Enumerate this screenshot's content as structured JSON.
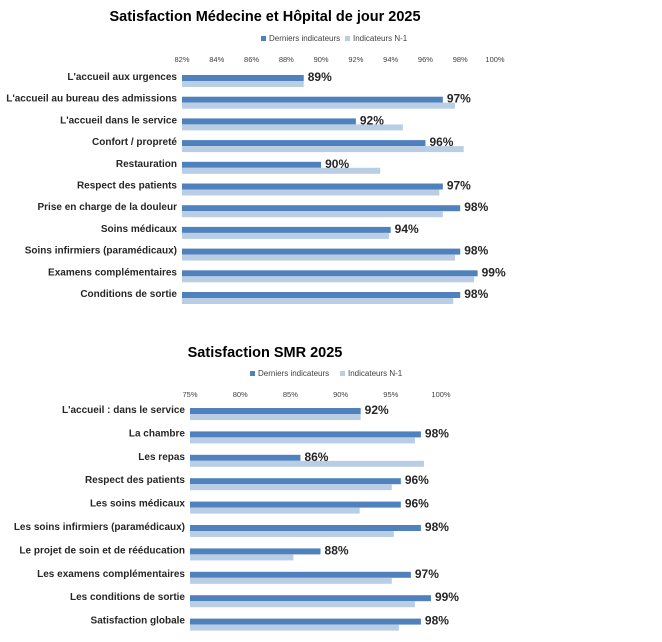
{
  "colors": {
    "current": "#4f81bd",
    "previous": "#b9cde5"
  },
  "chart_data": [
    {
      "type": "bar",
      "orientation": "horizontal",
      "title": "Satisfaction Médecine et Hôpital de jour 2025",
      "legend": [
        "Derniers indicateurs",
        "Indicateurs N-1"
      ],
      "legend_position": "top",
      "xlim": [
        82,
        100
      ],
      "xticks": [
        82,
        84,
        86,
        88,
        90,
        92,
        94,
        96,
        98,
        100
      ],
      "xtick_labels": [
        "82%",
        "84%",
        "86%",
        "88%",
        "90%",
        "92%",
        "94%",
        "96%",
        "98%",
        "100%"
      ],
      "grid": false,
      "categories": [
        "L'accueil aux urgences",
        "L'accueil au bureau des admissions",
        "L'accueil dans le service",
        "Confort / propreté",
        "Restauration",
        "Respect des patients",
        "Prise en charge de la douleur",
        "Soins médicaux",
        "Soins infirmiers (paramédicaux)",
        "Examens complémentaires",
        "Conditions de sortie"
      ],
      "series": [
        {
          "name": "Derniers indicateurs",
          "values": [
            89,
            97,
            92,
            96,
            90,
            97,
            98,
            94,
            98,
            99,
            98
          ]
        },
        {
          "name": "Indicateurs N-1",
          "values": [
            89,
            97.7,
            94.7,
            98.2,
            93.4,
            96.8,
            97,
            93.9,
            97.7,
            98.8,
            97.6
          ]
        }
      ],
      "data_labels": [
        "89%",
        "97%",
        "92%",
        "96%",
        "90%",
        "97%",
        "98%",
        "94%",
        "98%",
        "99%",
        "98%"
      ]
    },
    {
      "type": "bar",
      "orientation": "horizontal",
      "title": "Satisfaction SMR 2025",
      "legend": [
        "Derniers indicateurs",
        "Indicateurs N-1"
      ],
      "legend_position": "top",
      "xlim": [
        75,
        100
      ],
      "xticks": [
        75,
        80,
        85,
        90,
        95,
        100
      ],
      "xtick_labels": [
        "75%",
        "80%",
        "85%",
        "90%",
        "95%",
        "100%"
      ],
      "grid": false,
      "categories": [
        "L'accueil : dans le service",
        "La chambre",
        "Les repas",
        "Respect des patients",
        "Les soins médicaux",
        "Les soins infirmiers (paramédicaux)",
        "Le projet de soin et de rééducation",
        "Les examens complémentaires",
        "Les conditions de sortie",
        "Satisfaction globale"
      ],
      "series": [
        {
          "name": "Derniers indicateurs",
          "values": [
            92,
            98,
            86,
            96,
            96,
            98,
            88,
            97,
            99,
            98
          ]
        },
        {
          "name": "Indicateurs N-1",
          "values": [
            92,
            97.4,
            98.3,
            95.1,
            91.9,
            95.3,
            85.3,
            95.1,
            97.4,
            95.8
          ]
        }
      ],
      "data_labels": [
        "92%",
        "98%",
        "86%",
        "96%",
        "96%",
        "98%",
        "88%",
        "97%",
        "99%",
        "98%"
      ]
    }
  ]
}
